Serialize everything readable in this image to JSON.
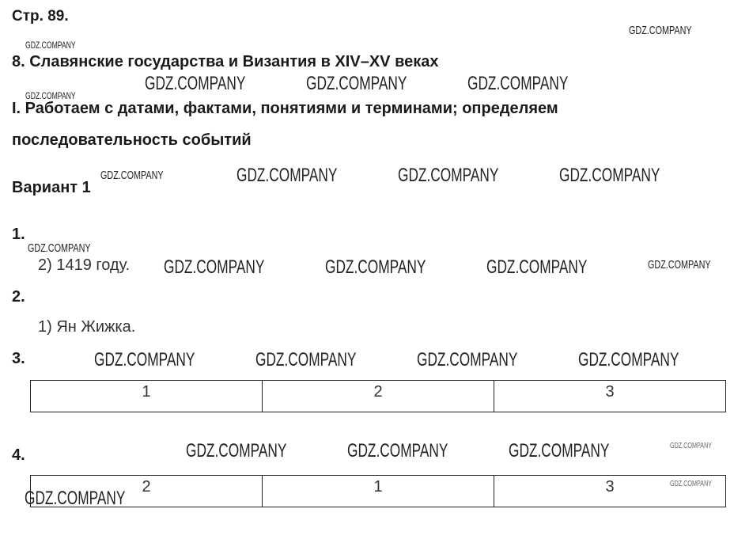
{
  "page_label": "Стр. 89.",
  "chapter_title": "8. Славянские государства и Византия в XIV–XV веках",
  "section_title_line1": "I. Работаем с датами, фактами, понятиями и терминами; определяем",
  "section_title_line2": "последовательность событий",
  "variant": "Вариант 1",
  "tasks": [
    {
      "number": "1.",
      "answer": "2) 1419 году."
    },
    {
      "number": "2.",
      "answer": "1) Ян Жижка."
    },
    {
      "number": "3.",
      "cells": [
        "1",
        "2",
        "3"
      ]
    },
    {
      "number": "4.",
      "cells": [
        "2",
        "1",
        "3"
      ]
    }
  ],
  "watermark": "GDZ.COMPANY"
}
